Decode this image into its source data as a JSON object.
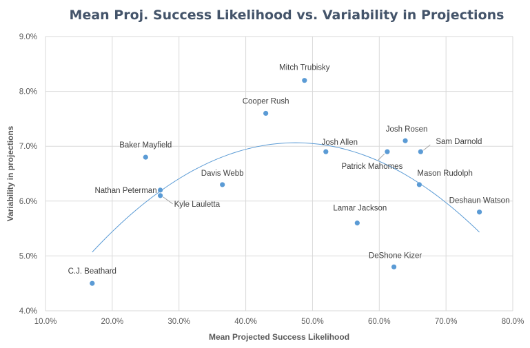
{
  "chart_data": {
    "type": "scatter",
    "title": "Mean Proj. Success Likelihood vs. Variability in Projections",
    "xlabel": "Mean Projected Success Likelihood",
    "ylabel": "Variability in projections",
    "xlim": [
      0.1,
      0.8
    ],
    "ylim": [
      0.04,
      0.09
    ],
    "x_ticks": [
      "10.0%",
      "20.0%",
      "30.0%",
      "40.0%",
      "50.0%",
      "60.0%",
      "70.0%",
      "80.0%"
    ],
    "y_ticks": [
      "4.0%",
      "5.0%",
      "6.0%",
      "7.0%",
      "8.0%",
      "9.0%"
    ],
    "grid": true,
    "legend": "none",
    "marker_color": "#5b9bd5",
    "trendline": {
      "type": "polynomial",
      "order": 2,
      "x_range": [
        0.17,
        0.75
      ],
      "color": "#5b9bd5"
    },
    "points": [
      {
        "name": "C.J. Beathard",
        "x": 0.17,
        "y": 0.045
      },
      {
        "name": "Baker Mayfield",
        "x": 0.25,
        "y": 0.068
      },
      {
        "name": "Nathan Peterman",
        "x": 0.272,
        "y": 0.062
      },
      {
        "name": "Kyle Lauletta",
        "x": 0.272,
        "y": 0.061
      },
      {
        "name": "Davis Webb",
        "x": 0.365,
        "y": 0.063
      },
      {
        "name": "Cooper Rush",
        "x": 0.43,
        "y": 0.076
      },
      {
        "name": "Mitch Trubisky",
        "x": 0.488,
        "y": 0.082
      },
      {
        "name": "Josh Allen",
        "x": 0.52,
        "y": 0.069
      },
      {
        "name": "Lamar Jackson",
        "x": 0.567,
        "y": 0.056
      },
      {
        "name": "Patrick Mahomes",
        "x": 0.612,
        "y": 0.069
      },
      {
        "name": "DeShone Kizer",
        "x": 0.622,
        "y": 0.048
      },
      {
        "name": "Josh Rosen",
        "x": 0.639,
        "y": 0.071
      },
      {
        "name": "Sam Darnold",
        "x": 0.662,
        "y": 0.069
      },
      {
        "name": "Mason Rudolph",
        "x": 0.66,
        "y": 0.063
      },
      {
        "name": "Deshaun Watson",
        "x": 0.75,
        "y": 0.058
      }
    ]
  }
}
